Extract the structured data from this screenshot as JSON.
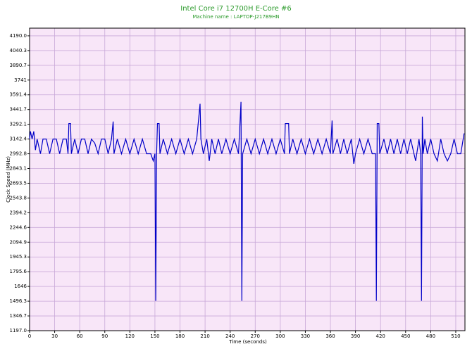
{
  "chart_data": {
    "type": "line",
    "title": "Intel Core i7 12700H E-Core #6",
    "subtitle": "Machine name : LAPTOP-J217B9HN",
    "x_label": "Time (seconds)",
    "y_label": "Clock Speed (MHz)",
    "xlim": [
      0,
      521
    ],
    "ylim": [
      1197,
      4268
    ],
    "xticks": [
      0,
      30,
      60,
      90,
      120,
      150,
      180,
      210,
      240,
      270,
      300,
      330,
      360,
      390,
      420,
      450,
      480,
      510
    ],
    "yticks": [
      {
        "value": 1197,
        "label": "1197.0"
      },
      1346.7,
      1496.3,
      1646.0,
      1795.6,
      1945.3,
      2094.9,
      2244.6,
      2394.2,
      2543.8,
      2693.5,
      2843.1,
      2992.8,
      3142.4,
      3292.1,
      3441.7,
      3591.4,
      3741.0,
      3890.7,
      4040.3,
      {
        "value": 4190,
        "label": "4190.0"
      }
    ],
    "grid": true,
    "series": [
      {
        "name": "Clock Speed",
        "color": "#0000c8",
        "x": [
          0,
          1,
          3,
          5,
          7,
          9,
          13,
          16,
          20,
          24,
          28,
          32,
          36,
          40,
          44,
          46,
          47,
          49,
          50,
          54,
          58,
          62,
          66,
          70,
          74,
          78,
          82,
          86,
          90,
          94,
          98,
          100,
          101,
          105,
          110,
          115,
          120,
          125,
          130,
          135,
          140,
          145,
          148,
          150,
          151,
          152,
          153,
          155,
          156,
          160,
          165,
          170,
          175,
          180,
          185,
          190,
          195,
          200,
          204,
          205,
          208,
          212,
          215,
          218,
          222,
          226,
          230,
          235,
          240,
          245,
          250,
          253,
          254,
          255,
          260,
          265,
          270,
          275,
          280,
          285,
          290,
          295,
          300,
          305,
          306,
          310,
          311,
          315,
          320,
          325,
          330,
          335,
          340,
          345,
          350,
          355,
          360,
          362,
          363,
          368,
          372,
          376,
          380,
          385,
          388,
          390,
          395,
          400,
          405,
          410,
          414,
          415,
          416,
          418,
          419,
          424,
          428,
          432,
          436,
          440,
          444,
          448,
          452,
          456,
          460,
          462,
          466,
          468,
          469,
          470,
          471,
          473,
          476,
          480,
          484,
          488,
          492,
          496,
          500,
          504,
          508,
          512,
          516,
          520
        ],
        "values": [
          3142,
          3220,
          3142,
          3220,
          3030,
          3142,
          2993,
          3142,
          3142,
          2993,
          3142,
          3142,
          2993,
          3142,
          3142,
          2993,
          3300,
          3300,
          2993,
          3142,
          2993,
          3142,
          3142,
          2993,
          3142,
          3100,
          2993,
          3142,
          3142,
          2993,
          3142,
          3320,
          2993,
          3142,
          2993,
          3142,
          2993,
          3142,
          2993,
          3142,
          2993,
          2993,
          2920,
          2993,
          1500,
          2993,
          3300,
          3300,
          2993,
          3142,
          2993,
          3142,
          2993,
          3142,
          2993,
          3142,
          2993,
          3142,
          3500,
          3142,
          2993,
          3142,
          2920,
          3142,
          2993,
          3142,
          2993,
          3142,
          2993,
          3142,
          2993,
          3520,
          1500,
          2993,
          3142,
          2993,
          3142,
          2993,
          3142,
          2993,
          3142,
          2993,
          3142,
          2993,
          3300,
          3300,
          2993,
          3142,
          2993,
          3142,
          2993,
          3142,
          2993,
          3142,
          2993,
          3142,
          2993,
          3330,
          2993,
          3142,
          2993,
          3142,
          2993,
          3142,
          2890,
          2993,
          3142,
          2993,
          3142,
          2993,
          2993,
          1500,
          3300,
          3300,
          2993,
          3142,
          2993,
          3142,
          2993,
          3142,
          2993,
          3142,
          2993,
          3142,
          2993,
          2920,
          3142,
          2993,
          1500,
          3370,
          2993,
          3142,
          2993,
          3142,
          2993,
          2920,
          3142,
          2993,
          2920,
          2993,
          3142,
          2993,
          2993,
          3200
        ]
      }
    ]
  }
}
